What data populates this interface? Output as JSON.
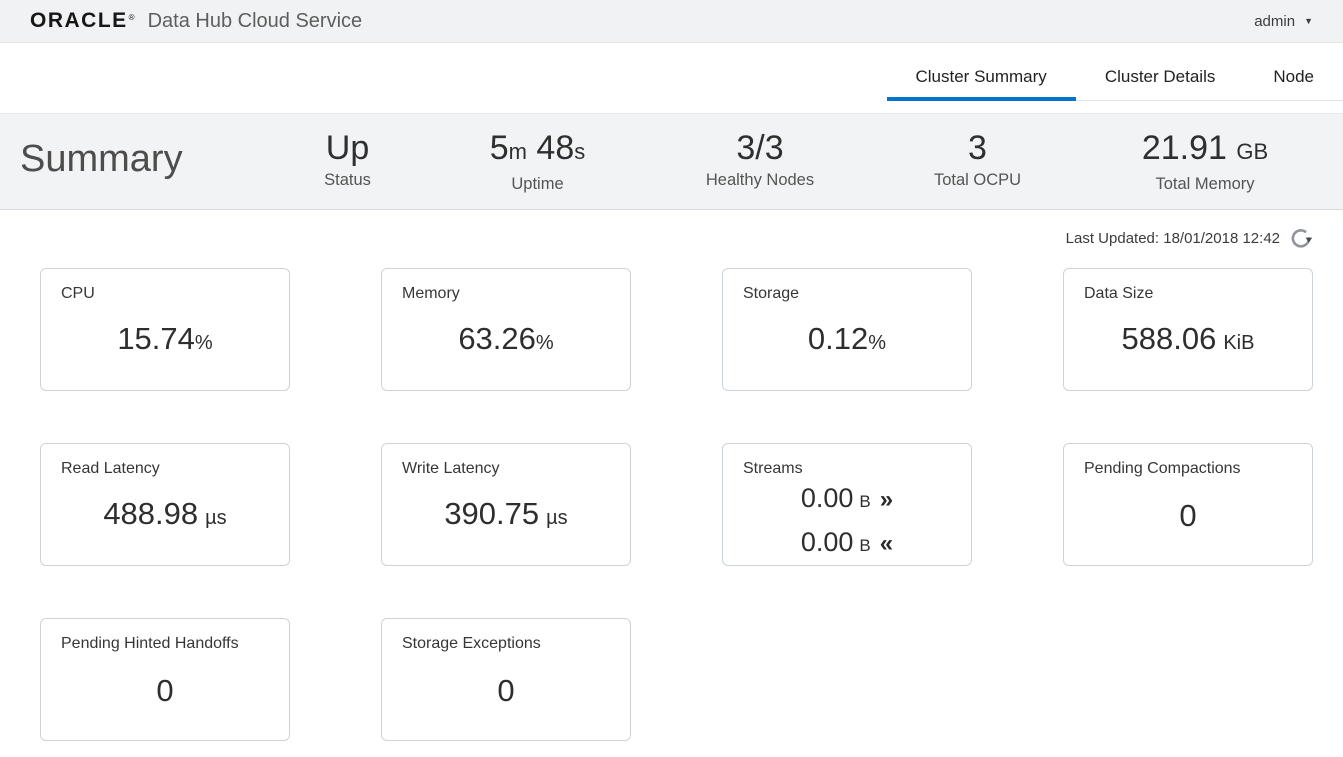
{
  "header": {
    "brand": "ORACLE",
    "registered_mark": "®",
    "product": "Data Hub Cloud Service",
    "user": "admin"
  },
  "tabs": [
    {
      "label": "Cluster Summary",
      "active": true
    },
    {
      "label": "Cluster Details",
      "active": false
    },
    {
      "label": "Node",
      "active": false
    }
  ],
  "summary": {
    "title": "Summary",
    "stats": [
      {
        "label": "Status",
        "value": "Up",
        "parts": [
          {
            "text": "Up"
          }
        ]
      },
      {
        "label": "Uptime",
        "value": "5m 48s",
        "parts": [
          {
            "text": "5"
          },
          {
            "text": "m",
            "small": true
          },
          {
            "text": " 48"
          },
          {
            "text": "s",
            "small": true
          }
        ]
      },
      {
        "label": "Healthy Nodes",
        "value": "3/3",
        "parts": [
          {
            "text": "3/3"
          }
        ]
      },
      {
        "label": "Total OCPU",
        "value": "3",
        "parts": [
          {
            "text": "3"
          }
        ]
      },
      {
        "label": "Total Memory",
        "value": "21.91 GB",
        "parts": [
          {
            "text": "21.91 "
          },
          {
            "text": "GB",
            "small": true
          }
        ]
      }
    ]
  },
  "last_updated": "Last Updated: 18/01/2018 12:42",
  "cards": [
    {
      "title": "CPU",
      "value": "15.74",
      "unit": "%",
      "unit_space": false
    },
    {
      "title": "Memory",
      "value": "63.26",
      "unit": "%",
      "unit_space": false
    },
    {
      "title": "Storage",
      "value": "0.12",
      "unit": "%",
      "unit_space": false
    },
    {
      "title": "Data Size",
      "value": "588.06",
      "unit": "KiB",
      "unit_space": true
    },
    {
      "title": "Read Latency",
      "value": "488.98",
      "unit": "µs",
      "unit_space": true
    },
    {
      "title": "Write Latency",
      "value": "390.75",
      "unit": "µs",
      "unit_space": true
    },
    {
      "title": "Streams",
      "lines": [
        {
          "value": "0.00",
          "unit": "B",
          "arrow": "»",
          "direction": "out"
        },
        {
          "value": "0.00",
          "unit": "B",
          "arrow": "«",
          "direction": "in"
        }
      ]
    },
    {
      "title": "Pending Compactions",
      "value": "0",
      "unit": "",
      "unit_space": false
    },
    {
      "title": "Pending Hinted Handoffs",
      "value": "0",
      "unit": "",
      "unit_space": false
    },
    {
      "title": "Storage Exceptions",
      "value": "0",
      "unit": "",
      "unit_space": false
    }
  ],
  "colors": {
    "accent_blue": "#0572ce",
    "topbar_bg": "#f0f2f3",
    "band_bg": "#f1f3f4",
    "card_border": "#ccd4da",
    "text_dark": "#2e2e2e"
  }
}
